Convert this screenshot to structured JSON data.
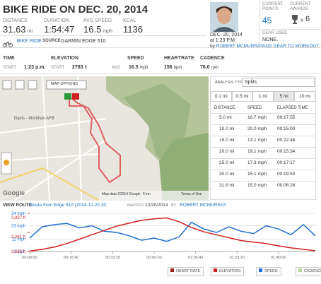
{
  "header": {
    "title": "BIKE RIDE ON DEC. 20, 2014",
    "stats": [
      {
        "label": "DISTANCE",
        "value": "31.63",
        "unit": "mi"
      },
      {
        "label": "DURATION",
        "value": "1:54:47"
      },
      {
        "label": "AVG SPEED",
        "value": "16.5",
        "unit": "mph"
      },
      {
        "label": "KCAL",
        "value": "1136"
      }
    ],
    "date": "DEC. 20, 2014",
    "time": "at 1:23 P.M.",
    "by": "by",
    "author": "ROBERT MCMURRAY",
    "points_label": "CURRENT POINTS",
    "points": "45",
    "awards_label": "CURRENT AWARDS",
    "awards_prefix": "x",
    "awards": "6",
    "gear_label": "GEAR USED",
    "gear": "NONE.",
    "add_gear": "ADD GEAR TO WORKOUT."
  },
  "activity": {
    "type": "BIKE RIDE",
    "source_label": "SOURCE",
    "source": "GARMIN EDGE 510"
  },
  "summary": [
    {
      "label": "TIME",
      "sub": "START",
      "value": "1:23 p.m."
    },
    {
      "label": "ELEVATION",
      "sub": "START",
      "value": "2783",
      "unit": "ft"
    },
    {
      "label": "SPEED",
      "sub": "AVG",
      "value": "16.5",
      "unit": "mph"
    },
    {
      "label": "HEARTRATE",
      "value": "156",
      "unit": "bpm"
    },
    {
      "label": "CADENCE",
      "value": "78.0",
      "unit": "rpm"
    }
  ],
  "map": {
    "options": "MAP OPTIONS",
    "place": "Davis - Monthan AFB",
    "logo": "Google",
    "attribution": "Map data ©2014 Google",
    "scale": "5 km",
    "terms": "Terms of Use"
  },
  "route": {
    "label": "VIEW ROUTE",
    "name": "Route from Edge 510 (2014-12-20 20",
    "mapped_label": "MAPPED",
    "mapped_date": "12/20/2014",
    "by": "BY",
    "author": "ROBERT MCMURRAY"
  },
  "splits": {
    "analysis_label": "ANALYSIS TYPE:",
    "analysis": "Splits",
    "tabs": [
      "0.1 mi",
      "0.5 mi",
      "1 mi",
      "5 mi",
      "10 mi"
    ],
    "selected_tab": 3,
    "columns": [
      "DISTANCE",
      "SPEED",
      "ELAPSED TIME"
    ],
    "rows": [
      [
        "5.0 mi",
        "16.7 mph",
        "00:17:55"
      ],
      [
        "10.0 mi",
        "20.0 mph",
        "00:15:00"
      ],
      [
        "15.0 mi",
        "13.1 mph",
        "00:22:48"
      ],
      [
        "20.0 mi",
        "19.1 mph",
        "00:15:34"
      ],
      [
        "25.0 mi",
        "17.3 mph",
        "00:17:17"
      ],
      [
        "30.0 mi",
        "15.1 mph",
        "00:19:50"
      ],
      [
        "31.6 mi",
        "15.0 mph",
        "00:06:28"
      ]
    ]
  },
  "chart": {
    "type": "line",
    "x": [
      0,
      300,
      600,
      900,
      1200,
      1500,
      1800,
      2100,
      2400,
      2700,
      3000,
      3300,
      3600,
      3900,
      4200,
      4500,
      4800,
      5100,
      5400,
      5700,
      6000,
      6300,
      6600,
      6887
    ],
    "xlim": [
      0,
      6887
    ],
    "xticks": [
      {
        "value": 0,
        "label": "00:00:00"
      },
      {
        "value": 1000,
        "label": "00:16:40"
      },
      {
        "value": 2000,
        "label": "00:33:20"
      },
      {
        "value": 3000,
        "label": "00:50:00"
      },
      {
        "value": 4000,
        "label": "01:06:40"
      },
      {
        "value": 5000,
        "label": "01:23:20"
      },
      {
        "value": 6000,
        "label": "01:40:00"
      }
    ],
    "ylim": [
      0,
      34
    ],
    "yticks": [
      {
        "value": 0,
        "label": "0 mph"
      },
      {
        "value": 11,
        "label": "11 mph"
      },
      {
        "value": 23,
        "label": "23 mph"
      },
      {
        "value": 34,
        "label": "34 mph"
      }
    ],
    "y2lim": [
      2625,
      3937
    ],
    "y2ticks": [
      {
        "value": 2625,
        "label": "2,625 ft"
      },
      {
        "value": 3281,
        "label": "3,281 ft"
      },
      {
        "value": 3937,
        "label": "3,937 ft"
      }
    ],
    "series": [
      {
        "name": "SPEED",
        "color": "#1f6fd0",
        "values": [
          12,
          22,
          24,
          25,
          21,
          23,
          18,
          17,
          14,
          10,
          12,
          9,
          13,
          26,
          20,
          17,
          22,
          18,
          16,
          23,
          20,
          15,
          24,
          14
        ]
      },
      {
        "name": "ELEVATION",
        "color": "#d02020",
        "axis": "y2",
        "values": [
          2640,
          2700,
          2780,
          2900,
          3050,
          3200,
          3350,
          3500,
          3600,
          3700,
          3750,
          3780,
          3650,
          3450,
          3300,
          3200,
          3100,
          3000,
          2950,
          2900,
          2820,
          2750,
          2700,
          2650
        ]
      }
    ],
    "legend": [
      {
        "name": "HEART RATE",
        "color": "#a02020"
      },
      {
        "name": "ELEVATION",
        "color": "#d02020"
      },
      {
        "name": "SPEED",
        "color": "#1f6fd0"
      },
      {
        "name": "CADENCE",
        "color": "#b8d8a0"
      }
    ]
  }
}
